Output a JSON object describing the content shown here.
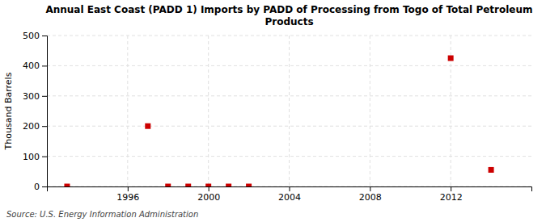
{
  "chart_data": {
    "type": "scatter",
    "title": "Annual East Coast (PADD 1) Imports by PADD of Processing from Togo of Total Petroleum\nProducts",
    "ylabel": "Thousand Barrels",
    "annotation": "Source: U.S. Energy Information Administration",
    "x": [
      1993,
      1997,
      1998,
      1999,
      2000,
      2001,
      2002,
      2012,
      2014
    ],
    "values": [
      0,
      200,
      0,
      0,
      0,
      0,
      0,
      425,
      55
    ],
    "color": "#cc0000",
    "marker": "square",
    "xlim": [
      1992,
      2016
    ],
    "xticks": [
      1996,
      2000,
      2004,
      2008,
      2012
    ],
    "ylim": [
      0,
      500
    ],
    "yticks": [
      0,
      100,
      200,
      300,
      400,
      500
    ],
    "grid": true
  }
}
